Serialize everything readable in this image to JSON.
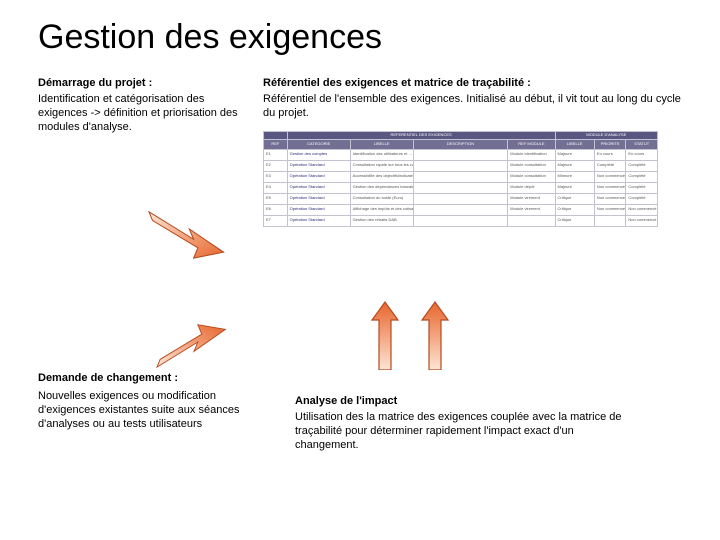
{
  "title": "Gestion des exigences",
  "left1": {
    "heading": "Démarrage du projet :",
    "body": "Identification et catégorisation des exigences -> définition et priorisation des modules d'analyse."
  },
  "right1": {
    "heading": "Référentiel des exigences et matrice de traçabilité :",
    "body": "Référentiel de l'ensemble des exigences. Initialisé au début, il vit tout au long du cycle du projet."
  },
  "demande": {
    "heading": "Demande de changement :",
    "body": "Nouvelles exigences ou modification d'exigences existantes suite aux séances d'analyses ou au tests utilisateurs"
  },
  "impact": {
    "heading": "Analyse de l'impact",
    "body": "Utilisation des la matrice des exigences couplée avec la matrice de traçabilité pour déterminer rapidement l'impact exact d'un changement."
  },
  "thumb": {
    "group_labels": [
      "",
      "REFERENTIEL DES EXIGENCES",
      "MODULE D'ANALYSE"
    ],
    "group_spans": [
      1,
      4,
      3
    ],
    "columns": [
      "REF",
      "CATEGORIE",
      "LIBELLE",
      "DESCRIPTION",
      "REF MODULE",
      "LIBELLE",
      "PRIORITE",
      "STATUT"
    ],
    "col_widths": [
      "6%",
      "16%",
      "16%",
      "24%",
      "12%",
      "10%",
      "8%",
      "8%"
    ],
    "rows": [
      [
        "E1",
        "Gestion des comptes",
        "Identification des utilisateurs et …",
        "",
        "Module identification",
        "Majeure",
        "En cours",
        "En cours"
      ],
      [
        "E2",
        "Opération Standard",
        "Consultation rapide sur tous les comptes",
        "",
        "Module consultation",
        "Majeure",
        "Complété",
        "Complété"
      ],
      [
        "E3",
        "Opération Standard",
        "Accessibilité des objectifs/indicateurs",
        "",
        "Module consultation",
        "Mineure",
        "Non commencé",
        "Complété"
      ],
      [
        "E4",
        "Opération Standard",
        "Gestion des dépendances bancaires",
        "",
        "Module dépôt",
        "Majeure",
        "Non commencé",
        "Complété"
      ],
      [
        "E5",
        "Opération Standard",
        "Consultation du solde (Euro)",
        "",
        "Module virement",
        "Critique",
        "Non commencé",
        "Complété"
      ],
      [
        "E6",
        "Opération Standard",
        "Affichage des impôts et des cotisations (Euro)",
        "",
        "Module virement",
        "Critique",
        "Non commencé",
        "Non commencé"
      ],
      [
        "E7",
        "Opération Standard",
        "Gestion des retraits DAB",
        "",
        "",
        "Critique",
        "",
        "Non commencé"
      ]
    ],
    "header_bg": "#726e94",
    "group_bg": "#5a5682",
    "border_color": "#c2c2d1"
  },
  "colors": {
    "arrow_fill_light": "#fde6d5",
    "arrow_fill_dark": "#e8652c",
    "arrow_stroke": "#b34b1e"
  }
}
